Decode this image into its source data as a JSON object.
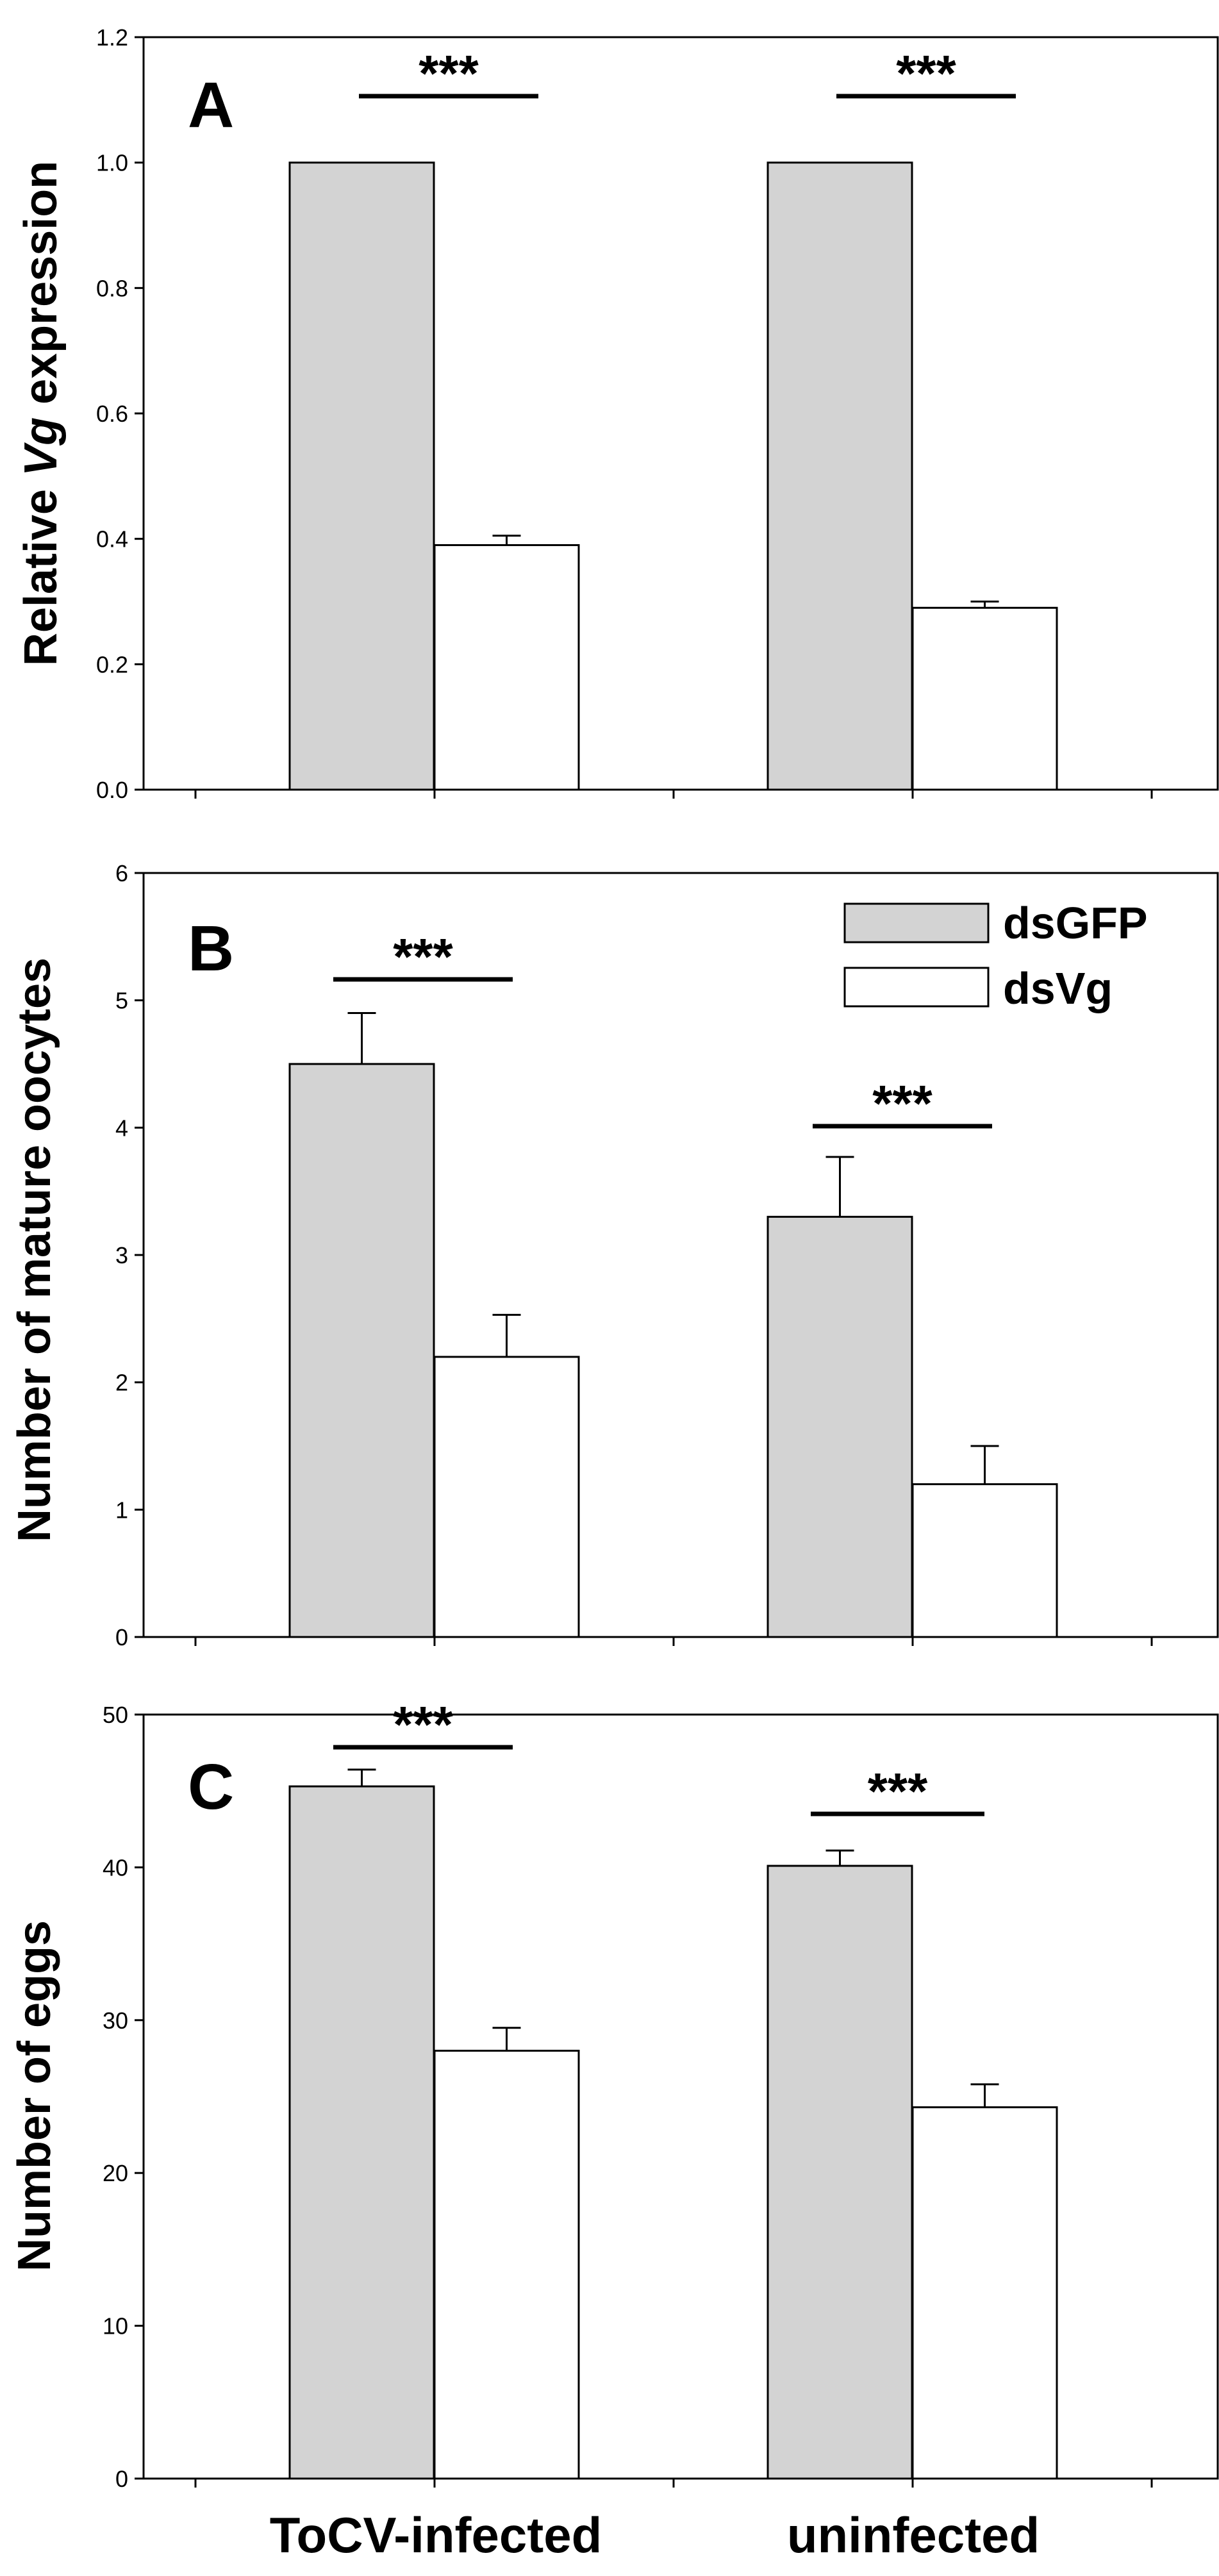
{
  "chart_data": [
    {
      "type": "bar",
      "panel_label": "A",
      "categories": [
        "ToCV-infected",
        "uninfected"
      ],
      "series": [
        {
          "name": "dsGFP",
          "values": [
            1.0,
            1.0
          ],
          "errors": [
            0,
            0
          ]
        },
        {
          "name": "dsVg",
          "values": [
            0.39,
            0.29
          ],
          "errors": [
            0.015,
            0.01
          ]
        }
      ],
      "ylabel_parts": [
        "Relative ",
        "Vg",
        " expression"
      ],
      "ylim": [
        0,
        1.2
      ],
      "yticks": [
        "0.0",
        "0.2",
        "0.4",
        "0.6",
        "0.8",
        "1.0",
        "1.2"
      ],
      "significance": [
        "***",
        "***"
      ]
    },
    {
      "type": "bar",
      "panel_label": "B",
      "categories": [
        "ToCV-infected",
        "uninfected"
      ],
      "series": [
        {
          "name": "dsGFP",
          "values": [
            4.5,
            3.3
          ],
          "errors": [
            0.4,
            0.47
          ]
        },
        {
          "name": "dsVg",
          "values": [
            2.2,
            1.2
          ],
          "errors": [
            0.33,
            0.3
          ]
        }
      ],
      "ylabel": "Number of mature oocytes",
      "ylim": [
        0,
        6
      ],
      "yticks": [
        "0",
        "1",
        "2",
        "3",
        "4",
        "5",
        "6"
      ],
      "significance": [
        "***",
        "***"
      ],
      "legend": [
        "dsGFP",
        "dsVg"
      ],
      "legend_position": "top-right"
    },
    {
      "type": "bar",
      "panel_label": "C",
      "categories": [
        "ToCV-infected",
        "uninfected"
      ],
      "series": [
        {
          "name": "dsGFP",
          "values": [
            45.3,
            40.1
          ],
          "errors": [
            1.1,
            1.0
          ]
        },
        {
          "name": "dsVg",
          "values": [
            28.0,
            24.3
          ],
          "errors": [
            1.5,
            1.5
          ]
        }
      ],
      "ylabel": "Number of eggs",
      "ylim": [
        0,
        50
      ],
      "yticks": [
        "0",
        "10",
        "20",
        "30",
        "40",
        "50"
      ],
      "significance": [
        "***",
        "***"
      ]
    }
  ],
  "x_category_labels": [
    "ToCV-infected",
    "uninfected"
  ],
  "colors": {
    "dsGFP": "#d3d3d3",
    "dsVg": "#ffffff",
    "stroke": "#000000"
  }
}
